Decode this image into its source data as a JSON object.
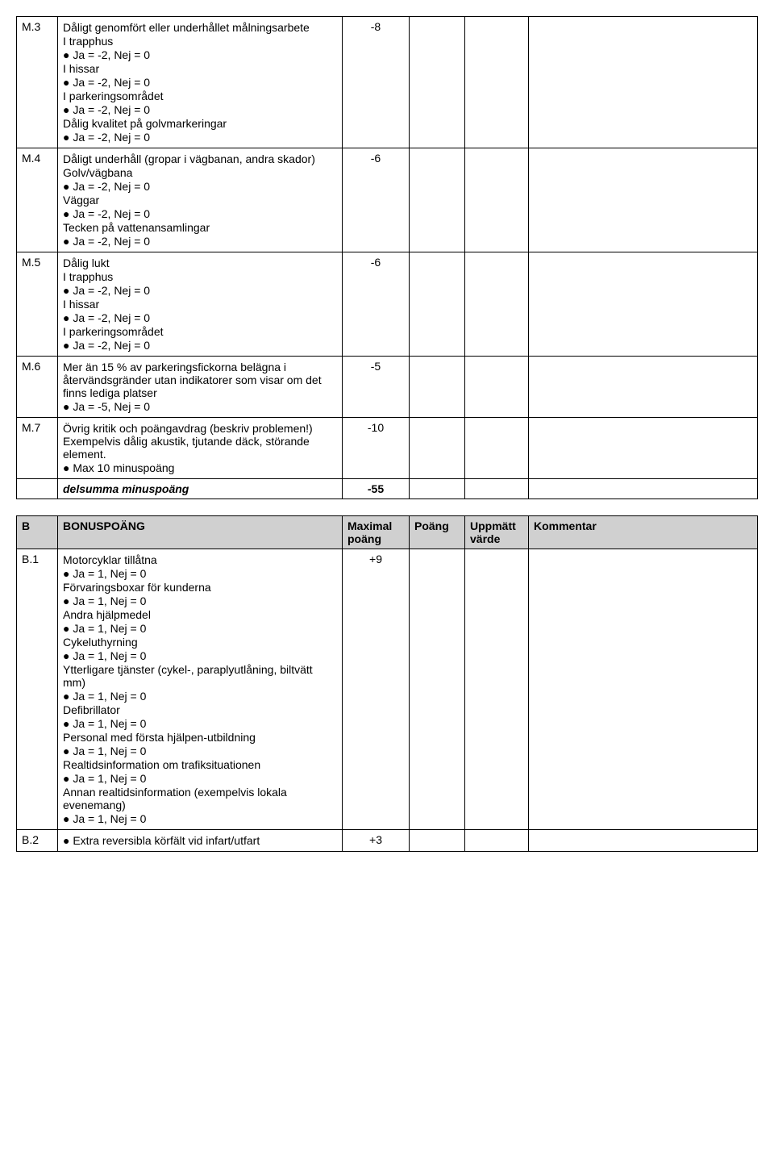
{
  "tableM": {
    "rows": [
      {
        "id": "M.3",
        "lines": [
          "Dåligt genomfört eller underhållet målningsarbete",
          "I trapphus",
          "● Ja = -2,      Nej = 0",
          "I hissar",
          "● Ja = -2,      Nej = 0",
          "I parkeringsområdet",
          "● Ja = -2,      Nej = 0",
          "Dålig kvalitet på golvmarkeringar",
          "● Ja = -2,      Nej = 0"
        ],
        "value": "-8"
      },
      {
        "id": "M.4",
        "lines": [
          "Dåligt underhåll (gropar i vägbanan, andra skador)",
          "Golv/vägbana",
          "● Ja = -2,      Nej = 0",
          "Väggar",
          "● Ja = -2,      Nej = 0",
          "Tecken på vattenansamlingar",
          "● Ja = -2,      Nej = 0"
        ],
        "value": "-6"
      },
      {
        "id": "M.5",
        "lines": [
          "Dålig lukt",
          "I trapphus",
          "● Ja = -2,      Nej = 0",
          "I hissar",
          "● Ja = -2,      Nej = 0",
          "I parkeringsområdet",
          "● Ja = -2,      Nej = 0"
        ],
        "value": "-6"
      },
      {
        "id": "M.6",
        "lines": [
          "Mer än 15 % av parkeringsfickorna belägna i återvändsgränder utan indikatorer som visar om det finns lediga platser",
          "● Ja = -5,      Nej = 0"
        ],
        "value": "-5"
      },
      {
        "id": "M.7",
        "lines": [
          "Övrig kritik och poängavdrag (beskriv problemen!) Exempelvis dålig akustik, tjutande däck, störande element.",
          "● Max 10 minuspoäng"
        ],
        "value": "-10"
      }
    ],
    "subtotal": {
      "label": "delsumma minuspoäng",
      "value": "-55"
    }
  },
  "tableB": {
    "header": {
      "id": "B",
      "title": "BONUSPOÄNG",
      "col3": "Maximal poäng",
      "col4": "Poäng",
      "col5": "Uppmätt värde",
      "col6": "Kommentar"
    },
    "rows": [
      {
        "id": "B.1",
        "lines": [
          "Motorcyklar tillåtna",
          "● Ja = 1,      Nej = 0",
          "Förvaringsboxar för kunderna",
          "● Ja = 1,      Nej = 0",
          "Andra hjälpmedel",
          "● Ja = 1,      Nej = 0",
          "Cykeluthyrning",
          "● Ja = 1,      Nej = 0",
          "Ytterligare tjänster (cykel-, paraplyutlåning, biltvätt mm)",
          "● Ja = 1,      Nej = 0",
          "Defibrillator",
          "● Ja = 1,      Nej = 0",
          "Personal med första hjälpen-utbildning",
          "● Ja = 1,      Nej = 0",
          "Realtidsinformation om trafiksituationen",
          "● Ja = 1,      Nej = 0",
          "Annan realtidsinformation (exempelvis lokala evenemang)",
          "● Ja = 1,      Nej = 0"
        ],
        "value": "+9"
      },
      {
        "id": "B.2",
        "lines": [
          "● Extra reversibla körfält vid infart/utfart"
        ],
        "value": "+3"
      }
    ]
  }
}
